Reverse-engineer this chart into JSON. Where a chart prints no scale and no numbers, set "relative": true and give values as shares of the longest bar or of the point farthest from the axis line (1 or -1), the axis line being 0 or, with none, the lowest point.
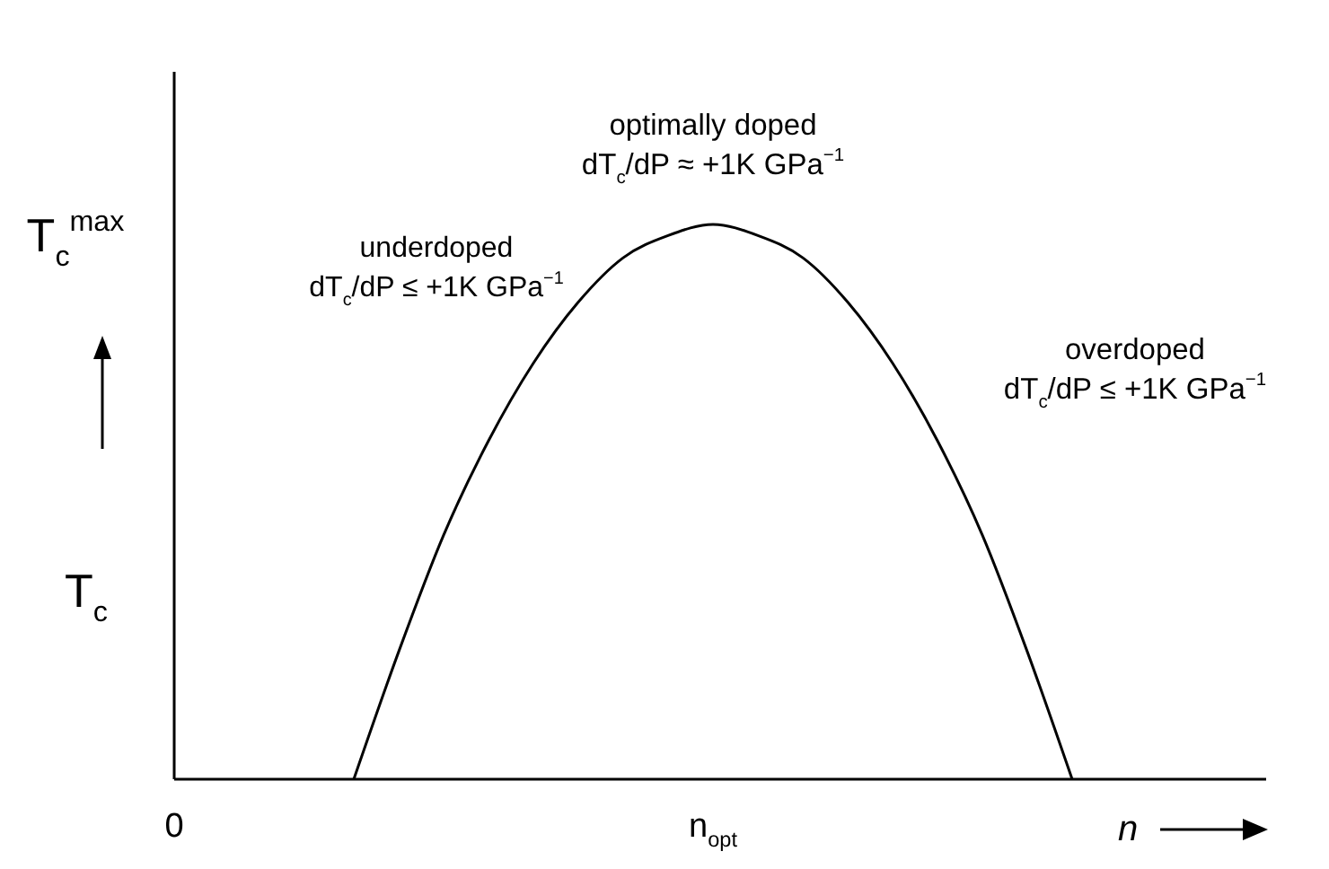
{
  "chart_data": {
    "type": "line",
    "relative": true,
    "categories": [
      "0",
      null,
      null,
      null,
      null,
      null,
      null,
      null,
      null,
      null,
      null,
      null,
      "n$_{opt}$",
      null,
      null,
      null,
      null,
      null,
      null,
      null,
      null,
      null,
      null,
      null,
      null
    ],
    "values": [
      null,
      null,
      null,
      null,
      0,
      0.23,
      0.44,
      0.61,
      0.75,
      0.86,
      0.94,
      0.98,
      1,
      0.98,
      0.94,
      0.86,
      0.75,
      0.61,
      0.44,
      0.23,
      0,
      null,
      null,
      null,
      null
    ],
    "color": "#000000",
    "xlabel": "n",
    "ylabel": "T$_{c}$",
    "annotations": [
      "T$_{c}$$^{max}$",
      "underdoped\ndT$_{c}$/dP ≤ +1K GPa$^{−1}$",
      "optimally doped\ndT$_{c}$/dP ≈ +1K GPa$^{−1}$",
      "overdoped\ndT$_{c}$/dP ≤ +1K GPa$^{−1}$"
    ]
  }
}
